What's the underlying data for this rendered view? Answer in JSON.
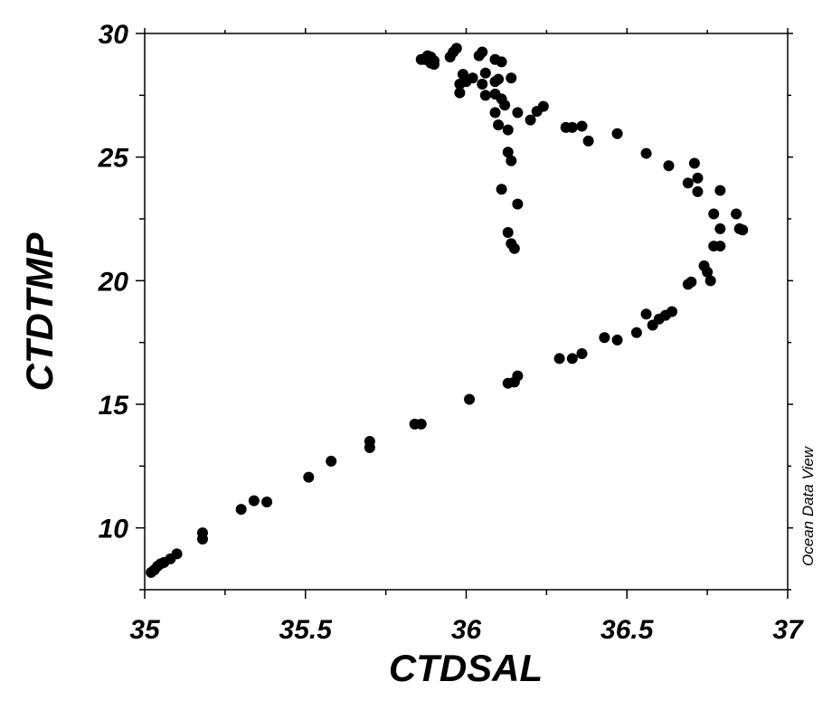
{
  "chart_data": {
    "type": "scatter",
    "xlabel": "CTDSAL",
    "ylabel": "CTDTMP",
    "xlim": [
      35,
      37
    ],
    "ylim": [
      7.5,
      30
    ],
    "x_ticks": [
      "35",
      "35.5",
      "36",
      "36.5",
      "37"
    ],
    "y_ticks": [
      "10",
      "15",
      "20",
      "25",
      "30"
    ],
    "marker_color": "#000000",
    "points": [
      [
        35.02,
        8.2
      ],
      [
        35.03,
        8.3
      ],
      [
        35.04,
        8.45
      ],
      [
        35.05,
        8.55
      ],
      [
        35.06,
        8.6
      ],
      [
        35.08,
        8.75
      ],
      [
        35.1,
        8.95
      ],
      [
        35.18,
        9.55
      ],
      [
        35.18,
        9.8
      ],
      [
        35.3,
        10.75
      ],
      [
        35.34,
        11.1
      ],
      [
        35.38,
        11.05
      ],
      [
        35.51,
        12.05
      ],
      [
        35.58,
        12.7
      ],
      [
        35.7,
        13.25
      ],
      [
        35.7,
        13.5
      ],
      [
        35.84,
        14.2
      ],
      [
        35.86,
        14.2
      ],
      [
        36.01,
        15.2
      ],
      [
        36.13,
        15.85
      ],
      [
        36.15,
        15.9
      ],
      [
        36.16,
        16.15
      ],
      [
        36.29,
        16.85
      ],
      [
        36.33,
        16.85
      ],
      [
        36.36,
        17.05
      ],
      [
        36.43,
        17.7
      ],
      [
        36.47,
        17.6
      ],
      [
        36.53,
        17.9
      ],
      [
        36.56,
        18.65
      ],
      [
        36.58,
        18.2
      ],
      [
        36.6,
        18.45
      ],
      [
        36.62,
        18.6
      ],
      [
        36.64,
        18.75
      ],
      [
        36.69,
        19.85
      ],
      [
        36.7,
        19.95
      ],
      [
        36.74,
        20.6
      ],
      [
        36.75,
        20.35
      ],
      [
        36.76,
        20.0
      ],
      [
        36.77,
        21.4
      ],
      [
        36.79,
        21.4
      ],
      [
        36.79,
        22.1
      ],
      [
        36.77,
        22.7
      ],
      [
        36.84,
        22.7
      ],
      [
        36.85,
        22.1
      ],
      [
        36.86,
        22.05
      ],
      [
        36.79,
        23.65
      ],
      [
        36.72,
        23.6
      ],
      [
        36.72,
        24.15
      ],
      [
        36.69,
        23.95
      ],
      [
        36.71,
        24.75
      ],
      [
        36.63,
        24.65
      ],
      [
        36.56,
        25.15
      ],
      [
        36.47,
        25.95
      ],
      [
        36.38,
        25.65
      ],
      [
        36.36,
        26.25
      ],
      [
        36.33,
        26.2
      ],
      [
        36.31,
        26.2
      ],
      [
        36.24,
        27.05
      ],
      [
        36.22,
        26.85
      ],
      [
        36.2,
        26.5
      ],
      [
        36.16,
        26.8
      ],
      [
        36.13,
        26.1
      ],
      [
        36.1,
        26.3
      ],
      [
        36.09,
        26.8
      ],
      [
        36.12,
        27.1
      ],
      [
        36.09,
        27.55
      ],
      [
        36.11,
        27.35
      ],
      [
        36.06,
        27.5
      ],
      [
        36.05,
        27.95
      ],
      [
        36.06,
        28.4
      ],
      [
        36.09,
        28.05
      ],
      [
        36.1,
        28.15
      ],
      [
        36.14,
        28.2
      ],
      [
        36.11,
        28.85
      ],
      [
        36.09,
        28.95
      ],
      [
        36.05,
        29.25
      ],
      [
        36.04,
        29.1
      ],
      [
        36.0,
        28.05
      ],
      [
        36.02,
        28.2
      ],
      [
        35.98,
        27.6
      ],
      [
        35.98,
        27.95
      ],
      [
        35.99,
        28.35
      ],
      [
        35.97,
        29.4
      ],
      [
        35.96,
        29.25
      ],
      [
        35.95,
        29.05
      ],
      [
        35.9,
        28.75
      ],
      [
        35.9,
        28.9
      ],
      [
        35.89,
        29.05
      ],
      [
        35.88,
        29.1
      ],
      [
        35.87,
        28.95
      ],
      [
        35.86,
        28.95
      ],
      [
        35.89,
        28.8
      ],
      [
        36.11,
        23.7
      ],
      [
        36.16,
        23.1
      ],
      [
        36.13,
        21.95
      ],
      [
        36.14,
        21.5
      ],
      [
        36.15,
        21.3
      ],
      [
        36.13,
        25.2
      ],
      [
        36.14,
        24.85
      ]
    ],
    "watermark": "Ocean Data View"
  }
}
